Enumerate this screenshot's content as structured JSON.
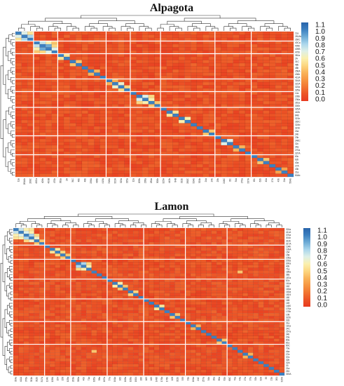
{
  "chart_data": [
    {
      "type": "heatmap",
      "title": "Alpagota",
      "n": 46,
      "labels": [
        "11a",
        "281Ab",
        "260C",
        "40Ca",
        "409b",
        "409B",
        "470b",
        "381a",
        "2A",
        "31C",
        "48b",
        "48b",
        "256A",
        "436b",
        "413A",
        "316A",
        "322A",
        "323a",
        "325a",
        "12a",
        "205b",
        "236a",
        "281a",
        "300b",
        "325A",
        "442b",
        "84B",
        "321b",
        "282C",
        "32Ab",
        "321b",
        "24a",
        "24b",
        "23b",
        "246C",
        "32c",
        "34a",
        "270a",
        "337A",
        "63c",
        "62b",
        "40a",
        "27A",
        "43b",
        "21a",
        "50Ab"
      ],
      "colorbar": {
        "ticks": [
          "1.1",
          "1.0",
          "0.9",
          "0.8",
          "0.7",
          "0.6",
          "0.5",
          "0.4",
          "0.3",
          "0.2",
          "0.1",
          "0.0"
        ],
        "min": 0.0,
        "max": 1.1
      },
      "highlights": [
        {
          "r": 0,
          "c": 1,
          "v": 0.7
        },
        {
          "r": 1,
          "c": 2,
          "v": 0.8
        },
        {
          "r": 0,
          "c": 2,
          "v": 0.55
        },
        {
          "r": 3,
          "c": 4,
          "v": 0.75
        },
        {
          "r": 4,
          "c": 5,
          "v": 0.9
        },
        {
          "r": 3,
          "c": 5,
          "v": 0.6
        },
        {
          "r": 5,
          "c": 6,
          "v": 0.7
        },
        {
          "r": 4,
          "c": 6,
          "v": 0.5
        },
        {
          "r": 3,
          "c": 6,
          "v": 0.45
        },
        {
          "r": 7,
          "c": 8,
          "v": 0.55
        },
        {
          "r": 9,
          "c": 10,
          "v": 0.45
        },
        {
          "r": 12,
          "c": 13,
          "v": 0.4
        },
        {
          "r": 16,
          "c": 17,
          "v": 0.65
        },
        {
          "r": 17,
          "c": 18,
          "v": 0.5
        },
        {
          "r": 15,
          "c": 16,
          "v": 0.4
        },
        {
          "r": 20,
          "c": 21,
          "v": 0.7
        },
        {
          "r": 21,
          "c": 22,
          "v": 0.6
        },
        {
          "r": 20,
          "c": 22,
          "v": 0.5
        },
        {
          "r": 22,
          "c": 23,
          "v": 0.45
        },
        {
          "r": 25,
          "c": 26,
          "v": 0.55
        },
        {
          "r": 27,
          "c": 28,
          "v": 0.6
        },
        {
          "r": 31,
          "c": 32,
          "v": 0.45
        },
        {
          "r": 34,
          "c": 35,
          "v": 0.7
        },
        {
          "r": 36,
          "c": 37,
          "v": 0.4
        },
        {
          "r": 40,
          "c": 41,
          "v": 0.45
        },
        {
          "r": 43,
          "c": 44,
          "v": 0.35
        }
      ]
    },
    {
      "type": "heatmap",
      "title": "Lamon",
      "n": 52,
      "labels": [
        "324a",
        "411A",
        "376a",
        "301b",
        "312b",
        "317A",
        "134b",
        "128A",
        "154",
        "158",
        "105a",
        "203a",
        "300a",
        "40b",
        "71a",
        "185a",
        "38a",
        "187a",
        "57a",
        "161a",
        "162",
        "163a",
        "163a",
        "1824",
        "180",
        "165",
        "169",
        "1480",
        "176a",
        "176b",
        "108",
        "322b",
        "333",
        "31a",
        "181a",
        "24C",
        "257a",
        "34b",
        "20a",
        "80a",
        "81a",
        "80C",
        "70a",
        "44a",
        "27a",
        "37a",
        "32b",
        "32A",
        "33",
        "21a",
        "261",
        "315A"
      ],
      "colorbar": {
        "ticks": [
          "1.1",
          "1.0",
          "0.9",
          "0.8",
          "0.7",
          "0.6",
          "0.5",
          "0.4",
          "0.3",
          "0.2",
          "0.1",
          "0.0"
        ],
        "min": 0.0,
        "max": 1.1
      },
      "highlights": [
        {
          "r": 0,
          "c": 1,
          "v": 0.75
        },
        {
          "r": 1,
          "c": 2,
          "v": 0.7
        },
        {
          "r": 0,
          "c": 2,
          "v": 0.6
        },
        {
          "r": 2,
          "c": 3,
          "v": 0.8
        },
        {
          "r": 1,
          "c": 3,
          "v": 0.6
        },
        {
          "r": 0,
          "c": 3,
          "v": 0.55
        },
        {
          "r": 3,
          "c": 4,
          "v": 0.65
        },
        {
          "r": 2,
          "c": 4,
          "v": 0.5
        },
        {
          "r": 4,
          "c": 5,
          "v": 0.45
        },
        {
          "r": 7,
          "c": 8,
          "v": 0.55
        },
        {
          "r": 8,
          "c": 9,
          "v": 0.5
        },
        {
          "r": 9,
          "c": 10,
          "v": 0.45
        },
        {
          "r": 12,
          "c": 13,
          "v": 0.8
        },
        {
          "r": 13,
          "c": 14,
          "v": 0.6
        },
        {
          "r": 12,
          "c": 14,
          "v": 0.5
        },
        {
          "r": 19,
          "c": 20,
          "v": 0.6
        },
        {
          "r": 20,
          "c": 21,
          "v": 0.45
        },
        {
          "r": 22,
          "c": 23,
          "v": 0.5
        },
        {
          "r": 27,
          "c": 28,
          "v": 0.55
        },
        {
          "r": 30,
          "c": 31,
          "v": 0.45
        },
        {
          "r": 34,
          "c": 35,
          "v": 0.4
        },
        {
          "r": 39,
          "c": 40,
          "v": 0.45
        },
        {
          "r": 44,
          "c": 45,
          "v": 0.4
        },
        {
          "r": 15,
          "c": 43,
          "v": 0.45
        }
      ]
    }
  ]
}
